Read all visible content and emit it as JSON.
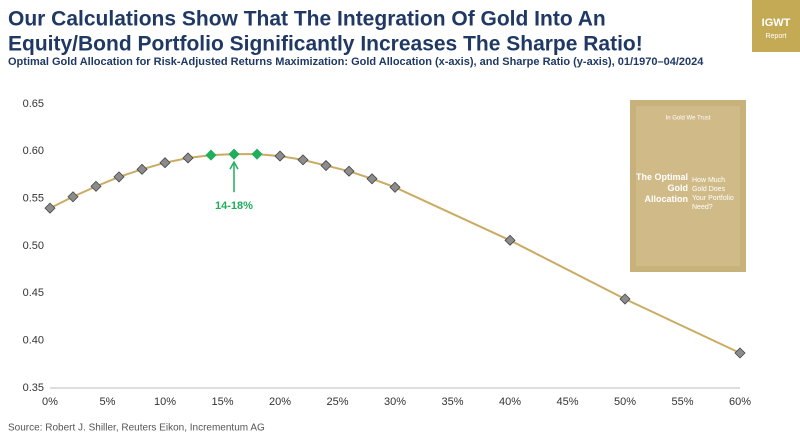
{
  "chart_data": {
    "type": "line",
    "title": "Our Calculations Show That The Integration Of Gold Into An",
    "title_line2": "Equity/Bond Portfolio Significantly Increases The Sharpe Ratio!",
    "subtitle": "Optimal Gold Allocation for Risk-Adjusted Returns Maximization: Gold Allocation (x-axis), and Sharpe Ratio (y-axis), 01/1970–04/2024",
    "source": "Source: Robert J. Shiller, Reuters Eikon, Incrementum AG",
    "annotation": "14-18%",
    "x": [
      0,
      2,
      4,
      6,
      8,
      10,
      12,
      14,
      16,
      18,
      20,
      22,
      24,
      26,
      28,
      30,
      40,
      50,
      60
    ],
    "series": [
      {
        "color": "#c9ab62",
        "marker_colors": [
          "#8c8c8c",
          "#8c8c8c",
          "#8c8c8c",
          "#8c8c8c",
          "#8c8c8c",
          "#8c8c8c",
          "#8c8c8c",
          "#1fae5b",
          "#1fae5b",
          "#1fae5b",
          "#8c8c8c",
          "#8c8c8c",
          "#8c8c8c",
          "#8c8c8c",
          "#8c8c8c",
          "#8c8c8c",
          "#8c8c8c",
          "#8c8c8c",
          "#8c8c8c"
        ],
        "values": [
          0.54,
          0.552,
          0.563,
          0.573,
          0.581,
          0.588,
          0.593,
          0.596,
          0.597,
          0.597,
          0.595,
          0.591,
          0.585,
          0.579,
          0.571,
          0.562,
          0.506,
          0.444,
          0.387
        ]
      }
    ],
    "xlim": [
      0,
      60
    ],
    "xticks": [
      {
        "value": 0,
        "label": "0%"
      },
      {
        "value": 5,
        "label": "5%"
      },
      {
        "value": 10,
        "label": "10%"
      },
      {
        "value": 15,
        "label": "15%"
      },
      {
        "value": 20,
        "label": "20%"
      },
      {
        "value": 25,
        "label": "25%"
      },
      {
        "value": 30,
        "label": "30%"
      },
      {
        "value": 35,
        "label": "35%"
      },
      {
        "value": 40,
        "label": "40%"
      },
      {
        "value": 45,
        "label": "45%"
      },
      {
        "value": 50,
        "label": "50%"
      },
      {
        "value": 55,
        "label": "55%"
      },
      {
        "value": 60,
        "label": "60%"
      }
    ],
    "ylim": [
      0.35,
      0.65
    ],
    "yticks": [
      0.35,
      {
        "value": 0.4,
        "label": "0.40"
      },
      0.45,
      {
        "value": 0.5,
        "label": "0.50"
      },
      0.55,
      {
        "value": 0.6,
        "label": "0.60"
      },
      0.65
    ],
    "grid": false
  },
  "logo": {
    "name": "IGWT",
    "tagline": "Report"
  },
  "book_cover": {
    "brand": "In Gold We Trust",
    "title": "The Optimal Gold Allocation",
    "question": "How Much Gold Does Your Portfolio Need?"
  }
}
